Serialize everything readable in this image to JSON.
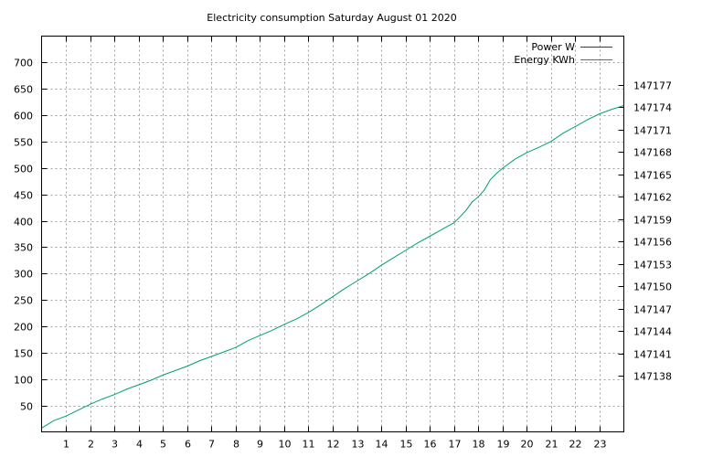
{
  "chart_data": {
    "type": "line",
    "title": "Electricity consumption Saturday August 01 2020",
    "xlabel": "",
    "ylabel": "",
    "xlim": [
      0,
      24
    ],
    "ylim": [
      0,
      750
    ],
    "y2lim": [
      147130.5,
      147183.5
    ],
    "x_ticks": [
      1,
      2,
      3,
      4,
      5,
      6,
      7,
      8,
      9,
      10,
      11,
      12,
      13,
      14,
      15,
      16,
      17,
      18,
      19,
      20,
      21,
      22,
      23
    ],
    "y_ticks": [
      50,
      100,
      150,
      200,
      250,
      300,
      350,
      400,
      450,
      500,
      550,
      600,
      650,
      700
    ],
    "y2_ticks": [
      147138,
      147141,
      147144,
      147147,
      147150,
      147153,
      147156,
      147159,
      147162,
      147165,
      147168,
      147171,
      147174,
      147177
    ],
    "grid": true,
    "legend_position": "top-right",
    "series": [
      {
        "name": "Power W",
        "axis": "y",
        "color": "#94007a",
        "x": [],
        "values": []
      },
      {
        "name": "Energy KWh",
        "axis": "y2",
        "color": "#009e73",
        "x": [
          0,
          0.5,
          1,
          1.5,
          2,
          2.5,
          3,
          3.5,
          4,
          4.5,
          5,
          5.5,
          6,
          6.5,
          7,
          7.5,
          8,
          8.5,
          9,
          9.5,
          10,
          10.5,
          11,
          11.5,
          12,
          12.5,
          13,
          13.5,
          14,
          14.5,
          15,
          15.5,
          16,
          16.5,
          17,
          17.25,
          17.5,
          17.75,
          18,
          18.25,
          18.5,
          18.75,
          19,
          19.5,
          20,
          20.5,
          21,
          21.5,
          22,
          22.5,
          23,
          23.5,
          24
        ],
        "values": [
          147131.0,
          147132.0,
          147132.6,
          147133.4,
          147134.2,
          147134.9,
          147135.5,
          147136.2,
          147136.8,
          147137.4,
          147138.1,
          147138.7,
          147139.3,
          147140.0,
          147140.6,
          147141.2,
          147141.8,
          147142.7,
          147143.4,
          147144.1,
          147144.9,
          147145.6,
          147146.5,
          147147.5,
          147148.6,
          147149.7,
          147150.7,
          147151.7,
          147152.8,
          147153.8,
          147154.8,
          147155.8,
          147156.7,
          147157.6,
          147158.5,
          147159.3,
          147160.2,
          147161.3,
          147162.0,
          147162.9,
          147164.3,
          147165.1,
          147165.8,
          147167.0,
          147167.9,
          147168.6,
          147169.4,
          147170.5,
          147171.4,
          147172.3,
          147173.1,
          147173.7,
          147174.2
        ]
      }
    ]
  }
}
